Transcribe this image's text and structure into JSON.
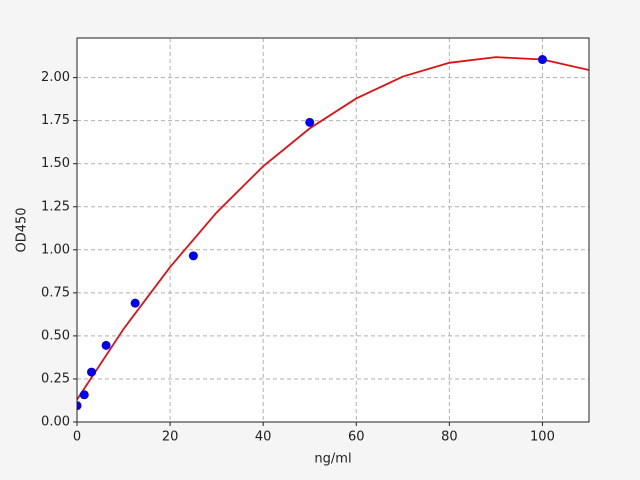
{
  "chart_data": {
    "type": "scatter",
    "xlabel": "ng/ml",
    "ylabel": "OD450",
    "xlim": [
      0,
      110
    ],
    "xticks": [
      0,
      20,
      40,
      60,
      80,
      100
    ],
    "ylim": [
      0,
      2.23
    ],
    "yticks": [
      {
        "value": 0,
        "label": "0.00"
      },
      0.25,
      {
        "value": 0.5,
        "label": "0.50"
      },
      0.75,
      {
        "value": 1,
        "label": "1.00"
      },
      1.25,
      {
        "value": 1.5,
        "label": "1.50"
      },
      1.75,
      {
        "value": 2,
        "label": "2.00"
      }
    ],
    "grid": true,
    "series": [
      {
        "type": "scatter",
        "color": "#0000ee",
        "x": [
          0,
          1.5625,
          3.125,
          6.25,
          12.5,
          25,
          50,
          100
        ],
        "values": [
          0.095,
          0.158,
          0.29,
          0.445,
          0.69,
          0.965,
          1.74,
          2.105
        ]
      },
      {
        "type": "line",
        "color": "#dd1111",
        "x": [
          0,
          10,
          20,
          30,
          40,
          50,
          60,
          70,
          80,
          90,
          100,
          110
        ],
        "values": [
          0.13,
          0.54,
          0.9,
          1.217,
          1.485,
          1.705,
          1.879,
          2.006,
          2.086,
          2.119,
          2.105,
          2.044
        ]
      }
    ]
  }
}
